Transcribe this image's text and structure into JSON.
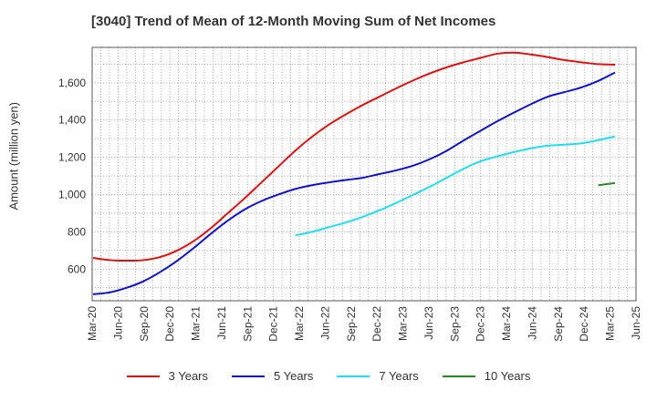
{
  "chart_data": {
    "type": "line",
    "title": "[3040]  Trend of Mean of 12-Month Moving Sum of Net Incomes",
    "xlabel": "",
    "ylabel": "Amount (million yen)",
    "ylim": [
      430,
      1790
    ],
    "yticks": [
      600,
      800,
      1000,
      1200,
      1400,
      1600
    ],
    "ytick_labels": [
      "600",
      "800",
      "1,000",
      "1,200",
      "1,400",
      "1,600"
    ],
    "xticks": [
      "Mar-20",
      "Jun-20",
      "Sep-20",
      "Dec-20",
      "Mar-21",
      "Jun-21",
      "Sep-21",
      "Dec-21",
      "Mar-22",
      "Jun-22",
      "Sep-22",
      "Dec-22",
      "Mar-23",
      "Jun-23",
      "Sep-23",
      "Dec-23",
      "Mar-24",
      "Jun-24",
      "Sep-24",
      "Dec-24",
      "Mar-25",
      "Jun-25"
    ],
    "grid": true,
    "legend_position": "bottom",
    "series": [
      {
        "name": "3 Years",
        "color": "#dd1111",
        "start_index": 0,
        "values": [
          660,
          648,
          645,
          648,
          665,
          700,
          752,
          820,
          900,
          980,
          1065,
          1150,
          1235,
          1310,
          1375,
          1430,
          1480,
          1525,
          1570,
          1612,
          1650,
          1683,
          1710,
          1733,
          1756,
          1762,
          1752,
          1738,
          1722,
          1710,
          1700,
          1697
        ]
      },
      {
        "name": "5 Years",
        "color": "#1111cc",
        "start_index": 0,
        "values": [
          465,
          475,
          500,
          535,
          585,
          645,
          715,
          790,
          860,
          920,
          965,
          1000,
          1030,
          1050,
          1065,
          1078,
          1090,
          1110,
          1130,
          1155,
          1190,
          1235,
          1290,
          1342,
          1393,
          1440,
          1485,
          1525,
          1550,
          1575,
          1610,
          1655
        ]
      },
      {
        "name": "7 Years",
        "color": "#22ddee",
        "start_index": 12,
        "values": [
          780,
          800,
          825,
          850,
          880,
          915,
          955,
          998,
          1042,
          1090,
          1138,
          1178,
          1205,
          1228,
          1248,
          1262,
          1268,
          1275,
          1292,
          1312
        ]
      },
      {
        "name": "10 Years",
        "color": "#228822",
        "start_index": 30,
        "values": [
          1050,
          1062
        ]
      }
    ]
  }
}
